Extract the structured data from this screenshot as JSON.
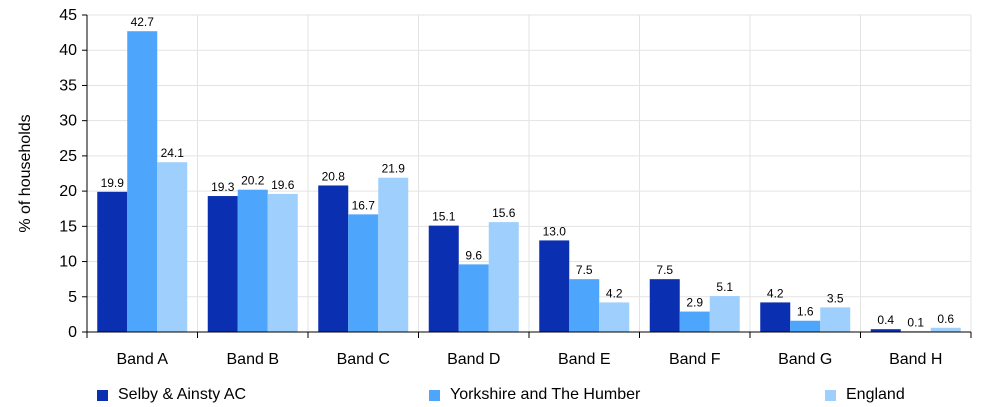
{
  "chart_data": {
    "type": "bar",
    "title": "",
    "xlabel": "",
    "ylabel": "% of households",
    "ylim": [
      0,
      45
    ],
    "yticks": [
      0,
      5,
      10,
      15,
      20,
      25,
      30,
      35,
      40,
      45
    ],
    "grid": true,
    "legend_position": "bottom",
    "categories": [
      "Band A",
      "Band B",
      "Band C",
      "Band D",
      "Band E",
      "Band F",
      "Band G",
      "Band H"
    ],
    "series": [
      {
        "name": "Selby & Ainsty AC",
        "color": "#0a2fb0",
        "values": [
          19.9,
          19.3,
          20.8,
          15.1,
          13.0,
          7.5,
          4.2,
          0.4
        ],
        "labels": [
          "19.9",
          "19.3",
          "20.8",
          "15.1",
          "13.0",
          "7.5",
          "4.2",
          "0.4"
        ]
      },
      {
        "name": "Yorkshire and The Humber",
        "color": "#4da6fb",
        "values": [
          42.7,
          20.2,
          16.7,
          9.6,
          7.5,
          2.9,
          1.6,
          0.1
        ],
        "labels": [
          "42.7",
          "20.2",
          "16.7",
          "9.6",
          "7.5",
          "2.9",
          "1.6",
          "0.1"
        ]
      },
      {
        "name": "England",
        "color": "#9fcffd",
        "values": [
          24.1,
          19.6,
          21.9,
          15.6,
          4.2,
          5.1,
          3.5,
          0.6
        ],
        "labels": [
          "24.1",
          "19.6",
          "21.9",
          "15.6",
          "4.2",
          "5.1",
          "3.5",
          "0.6"
        ]
      }
    ]
  }
}
